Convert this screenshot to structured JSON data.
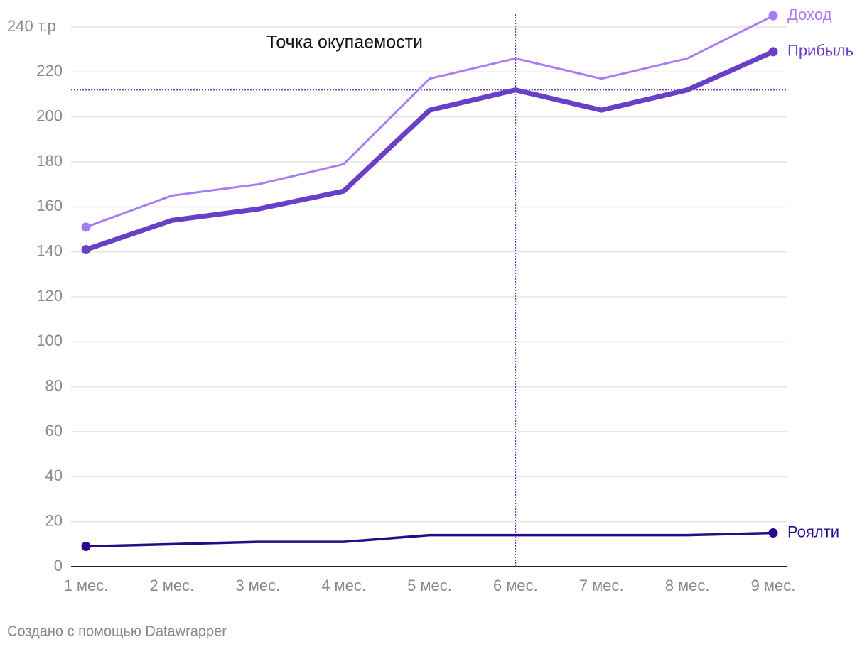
{
  "chart_data": {
    "type": "line",
    "categories": [
      "1 мес.",
      "2 мес.",
      "3 мес.",
      "4 мес.",
      "5 мес.",
      "6 мес.",
      "7 мес.",
      "8 мес.",
      "9 мес."
    ],
    "series": [
      {
        "name": "Доход",
        "color": "#a97cf4",
        "line_width": 3,
        "values": [
          151,
          165,
          170,
          179,
          217,
          226,
          217,
          226,
          245
        ]
      },
      {
        "name": "Прибыль",
        "color": "#6a3fc8",
        "line_width": 7,
        "values": [
          141,
          154,
          159,
          167,
          203,
          212,
          203,
          212,
          229
        ]
      },
      {
        "name": "Роялти",
        "color": "#2a0a8a",
        "line_width": 3.5,
        "values": [
          9,
          10,
          11,
          11,
          14,
          14,
          14,
          14,
          15
        ]
      }
    ],
    "ylim": [
      0,
      240
    ],
    "yticks": [
      0,
      20,
      40,
      60,
      80,
      100,
      120,
      140,
      160,
      180,
      200,
      220,
      {
        "value": 240,
        "label": "240 т.р"
      }
    ],
    "grid": true,
    "annotation": {
      "text": "Точка окупаемости",
      "y": 212,
      "x": "6 мес.",
      "color": "#5a3fc0"
    },
    "footer": "Создано с помощью Datawrapper"
  }
}
